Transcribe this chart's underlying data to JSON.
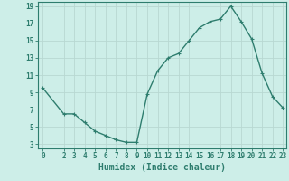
{
  "x": [
    0,
    2,
    3,
    4,
    5,
    6,
    7,
    8,
    9,
    10,
    11,
    12,
    13,
    14,
    15,
    16,
    17,
    18,
    19,
    20,
    21,
    22,
    23
  ],
  "y": [
    9.5,
    6.5,
    6.5,
    5.5,
    4.5,
    4.0,
    3.5,
    3.2,
    3.2,
    8.8,
    11.5,
    13.0,
    13.5,
    15.0,
    16.5,
    17.2,
    17.5,
    19.0,
    17.2,
    15.2,
    11.2,
    8.5,
    7.2
  ],
  "line_color": "#2e7d6e",
  "marker": "+",
  "marker_size": 3,
  "bg_color": "#cdeee8",
  "grid_color": "#b8d8d2",
  "xlabel": "Humidex (Indice chaleur)",
  "xlim": [
    0,
    23
  ],
  "ylim": [
    3,
    19
  ],
  "yticks": [
    3,
    5,
    7,
    9,
    11,
    13,
    15,
    17,
    19
  ],
  "xticks": [
    0,
    2,
    3,
    4,
    5,
    6,
    7,
    8,
    9,
    10,
    11,
    12,
    13,
    14,
    15,
    16,
    17,
    18,
    19,
    20,
    21,
    22,
    23
  ],
  "tick_label_fontsize": 5.5,
  "xlabel_fontsize": 7,
  "axis_color": "#2e7d6e",
  "line_width": 1.0,
  "marker_color": "#2e7d6e"
}
